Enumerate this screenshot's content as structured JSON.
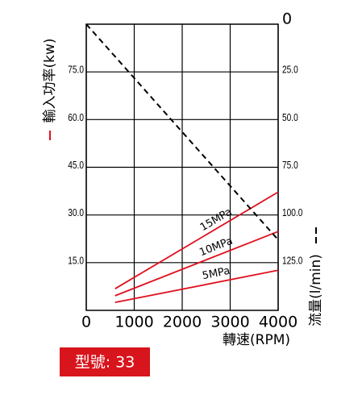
{
  "chart_data": {
    "type": "line",
    "x_label": "轉速(RPM)",
    "y_label": "輸入功率(kw)",
    "y2_label": "流量(l/min)",
    "badge": "型號: 33",
    "xlim": [
      0,
      4000
    ],
    "xticks": [
      0,
      1000,
      2000,
      3000,
      4000
    ],
    "ylim": [
      0,
      90
    ],
    "yticks": [
      {
        "value": 15,
        "label": "15.0"
      },
      {
        "value": 30,
        "label": "30.0"
      },
      {
        "value": 45,
        "label": "45.0"
      },
      {
        "value": 60,
        "label": "60.0"
      },
      {
        "value": 75,
        "label": "75.0"
      }
    ],
    "y2lim": [
      150,
      0
    ],
    "y2ticks": [
      0,
      {
        "value": 25,
        "label": "25.0"
      },
      {
        "value": 50,
        "label": "50.0"
      },
      {
        "value": 75,
        "label": "75.0"
      },
      {
        "value": 100,
        "label": "100.0"
      },
      {
        "value": 125,
        "label": "125.0"
      }
    ],
    "grid": true,
    "series": [
      {
        "name": "15MPa",
        "color": "#e0101e",
        "x": [
          600,
          4000
        ],
        "values": [
          6.8,
          37.2
        ]
      },
      {
        "name": "10MPa",
        "color": "#e0101e",
        "x": [
          600,
          4000
        ],
        "values": [
          4.6,
          24.8
        ]
      },
      {
        "name": "5MPa",
        "color": "#e0101e",
        "x": [
          600,
          4000
        ],
        "values": [
          2.5,
          12.6
        ]
      },
      {
        "color": "#000000",
        "dashed": true,
        "axis": "y2",
        "x": [
          0,
          4000
        ],
        "values": [
          0,
          113
        ]
      }
    ]
  }
}
